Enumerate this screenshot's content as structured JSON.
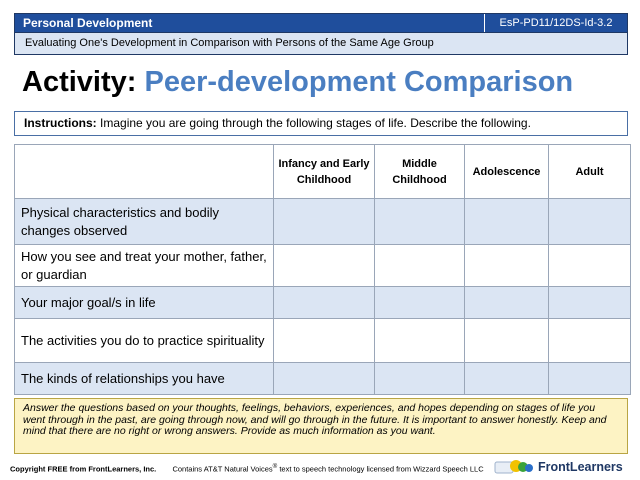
{
  "header": {
    "subject": "Personal Development",
    "code": "EsP-PD11/12DS-Id-3.2",
    "subtitle": "Evaluating One's Development in Comparison with Persons of the Same Age Group"
  },
  "title": {
    "lead": "Activity:",
    "rest": "Peer-development Comparison"
  },
  "instructions": {
    "label": "Instructions:",
    "text": "Imagine you are going through the following stages of life. Describe the following."
  },
  "table": {
    "columns": [
      "",
      "Infancy and Early Childhood",
      "Middle Childhood",
      "Adolescence",
      "Adult"
    ],
    "rows": [
      "Physical characteristics and bodily changes observed",
      "How you see and treat your mother, father, or guardian",
      "Your major goal/s in life",
      "The activities you do to practice spirituality",
      "The kinds of relationships you have"
    ]
  },
  "note": "Answer the questions based on your thoughts, feelings, behaviors, experiences, and hopes depending on stages of life you went through in the past, are going through now, and will go through in the future. It is important to answer honestly.  Keep and mind that there are no right or wrong answers.  Provide as much information as you want.",
  "footer": {
    "copyright": "Copyright FREE from FrontLearners, Inc.",
    "voices_pre": "Contains AT&T Natural Voices",
    "voices_sup": "®",
    "voices_post": " text to speech technology licensed from Wizzard Speech LLC",
    "brand": "FrontLearners"
  },
  "colors": {
    "header_bg": "#1f4e9c",
    "title_accent": "#4a7ec1",
    "row_shade": "#dbe5f3",
    "note_bg": "#fdf3c4"
  }
}
